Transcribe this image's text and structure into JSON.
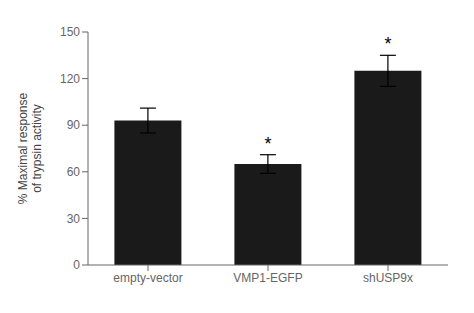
{
  "chart_data": {
    "type": "bar",
    "categories": [
      "empty-vector",
      "VMP1-EGFP",
      "shUSP9x"
    ],
    "values": [
      93,
      65,
      125
    ],
    "errors": [
      8,
      6,
      10
    ],
    "color": "#1a1a1a",
    "ylabel": "% Maximal response\nof trypsin activity",
    "ylim": [
      0,
      150
    ],
    "yticks": [
      0,
      30,
      60,
      90,
      120,
      150
    ],
    "grid": false,
    "annotations": [
      {
        "text": "*",
        "category": "VMP1-EGFP"
      },
      {
        "text": "*",
        "category": "shUSP9x"
      }
    ]
  }
}
